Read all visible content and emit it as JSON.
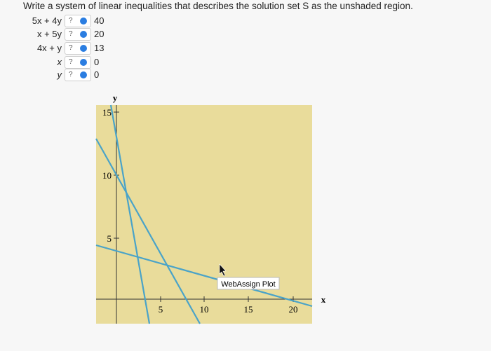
{
  "question": "Write a system of linear inequalities that describes the solution set S as the unshaded region.",
  "inequalities": [
    {
      "lhs": "5x + 4y",
      "selector": "?",
      "rhs": "40"
    },
    {
      "lhs": "x + 5y",
      "selector": "?",
      "rhs": "20"
    },
    {
      "lhs": "4x + y",
      "selector": "?",
      "rhs": "13"
    },
    {
      "lhs": "x",
      "selector": "?",
      "rhs": "0"
    },
    {
      "lhs": "y",
      "selector": "?",
      "rhs": "0"
    }
  ],
  "plot": {
    "y_label": "y",
    "x_label": "x",
    "x_tick_labels": [
      "5",
      "10",
      "15",
      "20"
    ],
    "y_tick_labels": [
      "15",
      "10",
      "5"
    ],
    "watermark": "WebAssign Plot"
  }
}
